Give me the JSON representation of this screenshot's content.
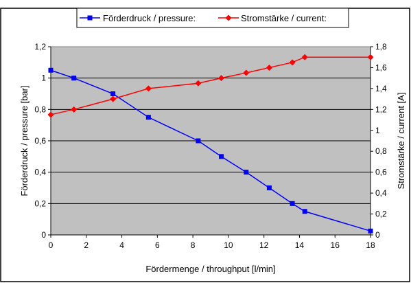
{
  "chart_data": {
    "type": "line",
    "title": "",
    "xlabel": "Fördermenge / throughput [l/min]",
    "ylabel": "Förderdruck / pressure [bar]",
    "y2label": "Stromstärke / current [A]",
    "xlim": [
      0,
      18
    ],
    "ylim": [
      0,
      1.2
    ],
    "y2lim": [
      0,
      1.8
    ],
    "x_ticks": [
      "0",
      "2",
      "4",
      "6",
      "8",
      "10",
      "12",
      "14",
      "16",
      "18"
    ],
    "y_ticks": [
      "0",
      "0,2",
      "0,4",
      "0,6",
      "0,8",
      "1",
      "1,2"
    ],
    "y2_ticks": [
      "0",
      "0,2",
      "0,4",
      "0,6",
      "0,8",
      "1",
      "1,2",
      "1,4",
      "1,6",
      "1,8"
    ],
    "grid": true,
    "legend_position": "top",
    "series": [
      {
        "name": "Förderdruck / pressure:",
        "axis": "left",
        "marker": "square",
        "color": "#0000FF",
        "x": [
          0,
          1.3,
          3.5,
          5.5,
          8.3,
          9.6,
          11,
          12.3,
          13.6,
          14.3,
          18
        ],
        "values": [
          1.05,
          1.0,
          0.9,
          0.75,
          0.6,
          0.5,
          0.4,
          0.3,
          0.2,
          0.15,
          0.025
        ]
      },
      {
        "name": "Stromstärke / current:",
        "axis": "right",
        "marker": "diamond",
        "color": "#FF0000",
        "x": [
          0,
          1.3,
          3.5,
          5.5,
          8.3,
          9.6,
          11,
          12.3,
          13.6,
          14.3,
          18
        ],
        "values": [
          1.15,
          1.2,
          1.3,
          1.4,
          1.45,
          1.5,
          1.55,
          1.6,
          1.65,
          1.7,
          1.7
        ]
      }
    ]
  }
}
